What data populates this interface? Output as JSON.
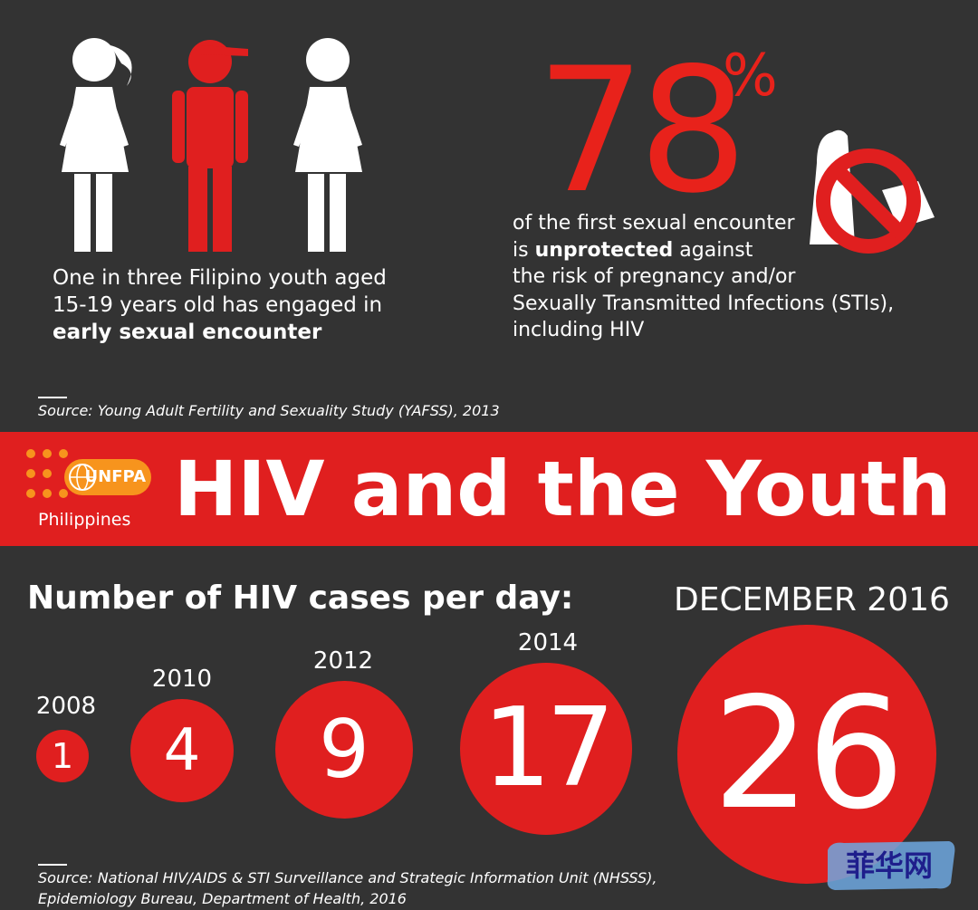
{
  "stat_one": {
    "line1": "One in three Filipino youth aged",
    "line2": "15-19 years old has engaged in",
    "line3_bold": "early sexual encounter"
  },
  "stat_two": {
    "number": "78",
    "percent_sign": "%",
    "line1": "of the first sexual encounter",
    "line2_pre": "is ",
    "line2_bold": "unprotected",
    "line2_post": " against",
    "line3": "the risk of pregnancy and/or",
    "line4": "Sexually Transmitted Infections (STIs),",
    "line5": "including HIV"
  },
  "source_one": "Source: Young Adult Fertility and Sexuality Study (YAFSS), 2013",
  "banner": {
    "logo_text": "UNFPA",
    "logo_sub": "Philippines",
    "title": "HIV and the Youth"
  },
  "cases": {
    "title": "Number of HIV cases per day:",
    "items": [
      {
        "year": "2008",
        "value": "1"
      },
      {
        "year": "2010",
        "value": "4"
      },
      {
        "year": "2012",
        "value": "9"
      },
      {
        "year": "2014",
        "value": "17"
      },
      {
        "year": "DECEMBER 2016",
        "value": "26"
      }
    ]
  },
  "source_two": {
    "line1": "Source: National HIV/AIDS & STI Surveillance and Strategic Information Unit (NHSSS),",
    "line2": "Epidemiology Bureau, Department of Health, 2016"
  },
  "watermark": "菲华网",
  "colors": {
    "background": "#333333",
    "accent_red": "#e01f1f",
    "unfpa_orange": "#f7941d"
  },
  "icons": [
    "girl-figure-icon",
    "boy-figure-icon",
    "girl-figure-icon",
    "no-condom-icon",
    "unfpa-globe-icon"
  ]
}
